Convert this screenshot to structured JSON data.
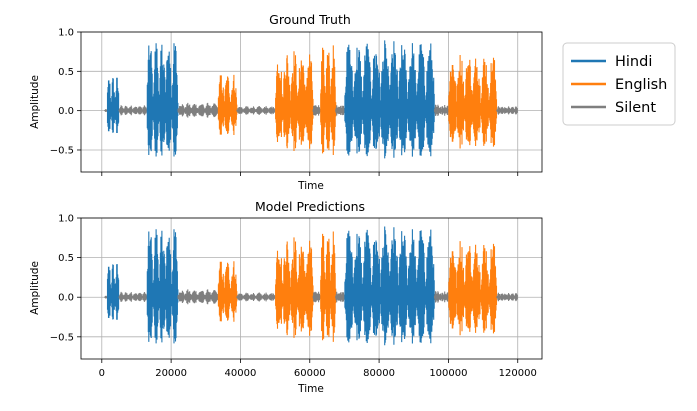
{
  "chart_data": [
    {
      "type": "line",
      "title": "Ground Truth",
      "xlabel": "Time",
      "ylabel": "Amplitude",
      "xlim": [
        -6000,
        127000
      ],
      "ylim": [
        -0.78,
        1.0
      ],
      "yticks": [
        -0.5,
        0.0,
        0.5,
        1.0
      ],
      "ytick_labels": [
        "−0.5",
        "0.0",
        "0.5",
        "1.0"
      ],
      "xticks": [
        0,
        20000,
        40000,
        60000,
        80000,
        100000,
        120000
      ],
      "xtick_labels": [],
      "grid": true,
      "series_refs": [
        "Hindi",
        "English",
        "Silent"
      ],
      "segments": [
        {
          "label": "Silent",
          "x": [
            800,
            1500
          ],
          "amp": 0.02
        },
        {
          "label": "Hindi",
          "x": [
            1500,
            5000
          ],
          "amp": 0.45
        },
        {
          "label": "Silent",
          "x": [
            5000,
            13000
          ],
          "amp": 0.07
        },
        {
          "label": "Hindi",
          "x": [
            13000,
            22000
          ],
          "amp": 0.93
        },
        {
          "label": "Silent",
          "x": [
            22000,
            33500
          ],
          "amp": 0.1
        },
        {
          "label": "English",
          "x": [
            33500,
            39000
          ],
          "amp": 0.48
        },
        {
          "label": "Silent",
          "x": [
            39000,
            50000
          ],
          "amp": 0.06
        },
        {
          "label": "English",
          "x": [
            50000,
            61000
          ],
          "amp": 0.8
        },
        {
          "label": "Silent",
          "x": [
            61000,
            63000
          ],
          "amp": 0.08
        },
        {
          "label": "English",
          "x": [
            63000,
            67500
          ],
          "amp": 0.85
        },
        {
          "label": "Silent",
          "x": [
            67500,
            70000
          ],
          "amp": 0.08
        },
        {
          "label": "Hindi",
          "x": [
            70000,
            96000
          ],
          "amp": 0.9
        },
        {
          "label": "Silent",
          "x": [
            96000,
            100000
          ],
          "amp": 0.08
        },
        {
          "label": "English",
          "x": [
            100000,
            114000
          ],
          "amp": 0.75
        },
        {
          "label": "Silent",
          "x": [
            114000,
            120000
          ],
          "amp": 0.06
        }
      ]
    },
    {
      "type": "line",
      "title": "Model Predictions",
      "xlabel": "Time",
      "ylabel": "Amplitude",
      "xlim": [
        -6000,
        127000
      ],
      "ylim": [
        -0.78,
        1.0
      ],
      "yticks": [
        -0.5,
        0.0,
        0.5,
        1.0
      ],
      "ytick_labels": [
        "−0.5",
        "0.0",
        "0.5",
        "1.0"
      ],
      "xticks": [
        0,
        20000,
        40000,
        60000,
        80000,
        100000,
        120000
      ],
      "xtick_labels": [
        "0",
        "20000",
        "40000",
        "60000",
        "80000",
        "100000",
        "120000"
      ],
      "grid": true,
      "series_refs": [
        "Hindi",
        "English",
        "Silent"
      ],
      "segments": [
        {
          "label": "Silent",
          "x": [
            800,
            1500
          ],
          "amp": 0.02
        },
        {
          "label": "Hindi",
          "x": [
            1500,
            5000
          ],
          "amp": 0.45
        },
        {
          "label": "Silent",
          "x": [
            5000,
            13000
          ],
          "amp": 0.07
        },
        {
          "label": "Hindi",
          "x": [
            13000,
            22000
          ],
          "amp": 0.93
        },
        {
          "label": "Silent",
          "x": [
            22000,
            33500
          ],
          "amp": 0.1
        },
        {
          "label": "English",
          "x": [
            33500,
            39000
          ],
          "amp": 0.48
        },
        {
          "label": "Silent",
          "x": [
            39000,
            50000
          ],
          "amp": 0.06
        },
        {
          "label": "English",
          "x": [
            50000,
            61000
          ],
          "amp": 0.8
        },
        {
          "label": "Silent",
          "x": [
            61000,
            63000
          ],
          "amp": 0.08
        },
        {
          "label": "English",
          "x": [
            63000,
            67500
          ],
          "amp": 0.85
        },
        {
          "label": "Silent",
          "x": [
            67500,
            70000
          ],
          "amp": 0.08
        },
        {
          "label": "Hindi",
          "x": [
            70000,
            96000
          ],
          "amp": 0.9
        },
        {
          "label": "Silent",
          "x": [
            96000,
            100000
          ],
          "amp": 0.08
        },
        {
          "label": "English",
          "x": [
            100000,
            114000
          ],
          "amp": 0.75
        },
        {
          "label": "Silent",
          "x": [
            114000,
            120000
          ],
          "amp": 0.06
        }
      ]
    }
  ],
  "legend": {
    "placement": "right",
    "entries": [
      {
        "label": "Hindi",
        "color": "#1f77b4"
      },
      {
        "label": "English",
        "color": "#ff7f0e"
      },
      {
        "label": "Silent",
        "color": "#7f7f7f"
      }
    ]
  }
}
